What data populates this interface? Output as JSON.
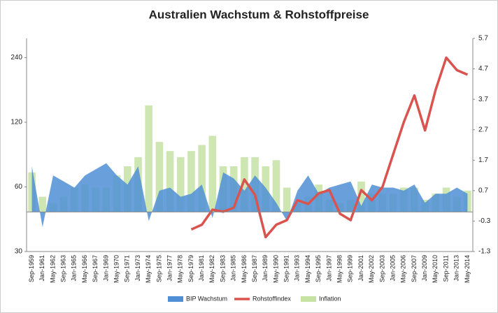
{
  "chart_data": {
    "type": "combo",
    "title": "Australien Wachstum & Rohstoffpreise",
    "categories": [
      "Sep-1959",
      "Jan-1961",
      "May-1962",
      "Sep-1963",
      "Jan-1965",
      "May-1966",
      "Sep-1967",
      "Jan-1969",
      "May-1970",
      "Sep-1971",
      "Jan-1973",
      "May-1974",
      "Sep-1975",
      "Jan-1977",
      "May-1978",
      "Sep-1979",
      "Jan-1981",
      "May-1982",
      "Sep-1983",
      "Jan-1985",
      "May-1986",
      "Sep-1987",
      "Jan-1989",
      "May-1990",
      "Sep-1991",
      "Jan-1993",
      "May-1994",
      "Sep-1995",
      "Jan-1997",
      "May-1998",
      "Sep-1999",
      "Jan-2001",
      "May-2002",
      "Sep-2003",
      "Jan-2005",
      "May-2006",
      "Sep-2007",
      "Jan-2009",
      "May-2010",
      "Sep-2011",
      "Jan-2013",
      "May-2014"
    ],
    "series": [
      {
        "name": "BIP Wachstum",
        "kind": "area",
        "axis": "y2",
        "color": "#4f8fd6",
        "values": [
          1.5,
          -0.5,
          1.2,
          1.0,
          0.8,
          1.2,
          1.4,
          1.6,
          1.2,
          0.9,
          1.5,
          -0.3,
          0.7,
          0.8,
          0.5,
          0.6,
          0.9,
          -0.2,
          1.3,
          1.1,
          0.7,
          1.2,
          0.8,
          0.3,
          -0.3,
          0.7,
          1.2,
          0.6,
          0.8,
          0.9,
          1.0,
          0.2,
          0.9,
          0.8,
          0.8,
          0.7,
          0.9,
          0.3,
          0.6,
          0.6,
          0.8,
          0.6
        ]
      },
      {
        "name": "Rohstoffindex",
        "kind": "line",
        "color": "#d9534f",
        "values": [
          null,
          null,
          null,
          null,
          null,
          null,
          null,
          null,
          null,
          null,
          null,
          null,
          null,
          null,
          null,
          38,
          40,
          47,
          46,
          48,
          65,
          55,
          35,
          40,
          42,
          52,
          50,
          56,
          58,
          45,
          42,
          58,
          52,
          60,
          85,
          120,
          160,
          110,
          170,
          240,
          210,
          200
        ]
      },
      {
        "name": "Inflation",
        "kind": "bar",
        "axis": "y2",
        "color": "#c6e3a4",
        "values": [
          1.3,
          0.5,
          0.3,
          0.5,
          0.8,
          0.9,
          0.8,
          0.8,
          1.2,
          1.5,
          1.8,
          3.5,
          2.3,
          2.0,
          1.8,
          2.0,
          2.2,
          2.5,
          1.5,
          1.5,
          1.8,
          1.8,
          1.5,
          1.7,
          0.8,
          0.3,
          0.5,
          0.9,
          0.4,
          0.3,
          0.4,
          1.0,
          0.6,
          0.6,
          0.6,
          0.8,
          0.8,
          0.4,
          0.6,
          0.8,
          0.5,
          0.7
        ]
      }
    ],
    "yscale": "log",
    "ylim": [
      30,
      295
    ],
    "yticks": [
      30,
      60,
      120,
      240
    ],
    "y2lim": [
      -1.3,
      5.7
    ],
    "y2ticks": [
      -1.3,
      -0.3,
      0.7,
      1.7,
      2.7,
      3.7,
      4.7,
      5.7
    ],
    "legend": "bottom"
  }
}
